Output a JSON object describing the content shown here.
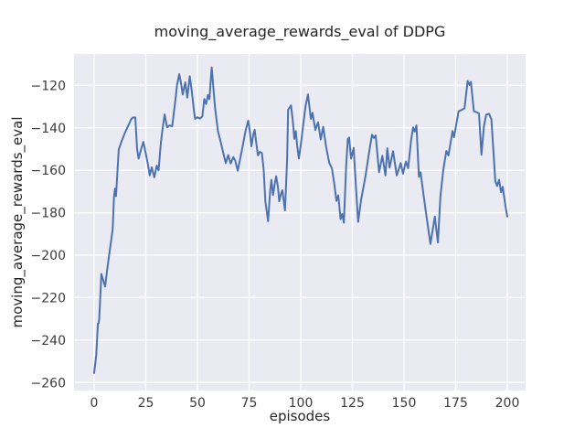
{
  "chart_data": {
    "type": "line",
    "title": "moving_average_rewards_eval of DDPG",
    "xlabel": "episodes",
    "ylabel": "moving_average_rewards_eval",
    "x_ticks": [
      0,
      25,
      50,
      75,
      100,
      125,
      150,
      175,
      200
    ],
    "y_ticks": [
      -120,
      -140,
      -160,
      -180,
      -200,
      -220,
      -240,
      -260
    ],
    "xlim": [
      -9.73,
      208.85
    ],
    "ylim": [
      -263.75,
      -105.2
    ],
    "grid": true,
    "legend": "none",
    "line_color": "#4C72B0",
    "plot_background": "#EAEAF2",
    "grid_color": "#FFFFFF",
    "figure_background": "#FFFFFF",
    "series": [
      {
        "name": "moving_average_rewards_eval",
        "points": [
          [
            0,
            -255.5
          ],
          [
            1,
            -247
          ],
          [
            1.8,
            -232.3
          ],
          [
            2.2,
            -231.9
          ],
          [
            2.5,
            -229.6
          ],
          [
            3.5,
            -208.8
          ],
          [
            4.3,
            -211.5
          ],
          [
            5.3,
            -214.8
          ],
          [
            6.3,
            -207
          ],
          [
            7.3,
            -199.5
          ],
          [
            8.2,
            -193.5
          ],
          [
            9,
            -187.6
          ],
          [
            9.6,
            -172.5
          ],
          [
            10.1,
            -168.6
          ],
          [
            10.6,
            -172.2
          ],
          [
            11.9,
            -150.2
          ],
          [
            13.4,
            -146
          ],
          [
            14.9,
            -142.3
          ],
          [
            16.5,
            -139
          ],
          [
            17.8,
            -136.2
          ],
          [
            18.6,
            -135.2
          ],
          [
            19.9,
            -135.1
          ],
          [
            20.8,
            -150
          ],
          [
            21.5,
            -154.5
          ],
          [
            22.6,
            -150.5
          ],
          [
            23.8,
            -146.6
          ],
          [
            25.2,
            -153
          ],
          [
            26.2,
            -158
          ],
          [
            26.9,
            -162.4
          ],
          [
            27.9,
            -158.6
          ],
          [
            29.1,
            -163.3
          ],
          [
            30.3,
            -157.8
          ],
          [
            31.2,
            -160
          ],
          [
            32.3,
            -147
          ],
          [
            33.2,
            -140
          ],
          [
            34.1,
            -133.7
          ],
          [
            35.3,
            -139.8
          ],
          [
            36.5,
            -138.9
          ],
          [
            37.8,
            -139.3
          ],
          [
            39.2,
            -128
          ],
          [
            40.1,
            -120
          ],
          [
            41.2,
            -114.7
          ],
          [
            42.3,
            -120.5
          ],
          [
            42.9,
            -124.3
          ],
          [
            44.1,
            -118.6
          ],
          [
            45.1,
            -125.8
          ],
          [
            46.3,
            -115.7
          ],
          [
            47.3,
            -123
          ],
          [
            48.3,
            -132
          ],
          [
            48.9,
            -135.8
          ],
          [
            50,
            -135
          ],
          [
            51.2,
            -135.6
          ],
          [
            52.4,
            -134.6
          ],
          [
            53.3,
            -126.4
          ],
          [
            54.2,
            -128.8
          ],
          [
            55.1,
            -124.5
          ],
          [
            55.8,
            -126.5
          ],
          [
            56.9,
            -111.5
          ],
          [
            57.8,
            -122
          ],
          [
            58.6,
            -131
          ],
          [
            59.9,
            -141.5
          ],
          [
            61.4,
            -147.3
          ],
          [
            62.8,
            -153
          ],
          [
            63.7,
            -156.6
          ],
          [
            64.9,
            -152.8
          ],
          [
            66.1,
            -156.8
          ],
          [
            67.4,
            -153.8
          ],
          [
            68.3,
            -155.5
          ],
          [
            69.5,
            -160.2
          ],
          [
            70.8,
            -154
          ],
          [
            72.2,
            -147
          ],
          [
            73.5,
            -140.5
          ],
          [
            74.6,
            -136.6
          ],
          [
            75.4,
            -142
          ],
          [
            76.1,
            -148.7
          ],
          [
            77,
            -143.5
          ],
          [
            77.7,
            -140.9
          ],
          [
            78.6,
            -148
          ],
          [
            79.3,
            -153
          ],
          [
            80.2,
            -151.3
          ],
          [
            81.2,
            -151.8
          ],
          [
            82.1,
            -160
          ],
          [
            82.9,
            -174.6
          ],
          [
            84.2,
            -184
          ],
          [
            85.2,
            -170
          ],
          [
            85.8,
            -164.5
          ],
          [
            86.6,
            -171.7
          ],
          [
            87.5,
            -166
          ],
          [
            88.1,
            -162.8
          ],
          [
            89,
            -168
          ],
          [
            89.6,
            -174.6
          ],
          [
            90.5,
            -171
          ],
          [
            91.1,
            -169.4
          ],
          [
            92.4,
            -178.9
          ],
          [
            93.4,
            -155
          ],
          [
            93.9,
            -131.5
          ],
          [
            95.3,
            -129.4
          ],
          [
            96.2,
            -137
          ],
          [
            96.9,
            -145.2
          ],
          [
            97.6,
            -141.5
          ],
          [
            98.3,
            -148.7
          ],
          [
            99.1,
            -154.5
          ],
          [
            100.2,
            -147
          ],
          [
            101.3,
            -138
          ],
          [
            102.3,
            -130
          ],
          [
            103.5,
            -124.3
          ],
          [
            104.9,
            -135.8
          ],
          [
            105.7,
            -132.9
          ],
          [
            107.1,
            -141
          ],
          [
            108.4,
            -137.4
          ],
          [
            109.7,
            -145.5
          ],
          [
            110.9,
            -139.5
          ],
          [
            112.3,
            -149
          ],
          [
            113.8,
            -156.5
          ],
          [
            115.1,
            -159
          ],
          [
            116.2,
            -166
          ],
          [
            117.3,
            -174.4
          ],
          [
            118.2,
            -171.8
          ],
          [
            119.3,
            -183
          ],
          [
            120.1,
            -180.6
          ],
          [
            120.9,
            -184.7
          ],
          [
            122,
            -158
          ],
          [
            122.8,
            -145.3
          ],
          [
            123.4,
            -144.6
          ],
          [
            124.4,
            -154.5
          ],
          [
            125.6,
            -149.4
          ],
          [
            126.7,
            -167
          ],
          [
            127.8,
            -184.3
          ],
          [
            129.2,
            -174
          ],
          [
            131.3,
            -163.2
          ],
          [
            133,
            -152
          ],
          [
            134.5,
            -143.2
          ],
          [
            135.4,
            -144.8
          ],
          [
            136.3,
            -143.6
          ],
          [
            137.9,
            -160.9
          ],
          [
            139.5,
            -153.2
          ],
          [
            141,
            -162.4
          ],
          [
            141.9,
            -149.6
          ],
          [
            143,
            -158.7
          ],
          [
            144.7,
            -151
          ],
          [
            146.5,
            -162.4
          ],
          [
            148.4,
            -156.6
          ],
          [
            149.5,
            -161.6
          ],
          [
            150.9,
            -155.9
          ],
          [
            152,
            -159
          ],
          [
            153.4,
            -146
          ],
          [
            154.4,
            -139.8
          ],
          [
            155.2,
            -141.8
          ],
          [
            156,
            -138.8
          ],
          [
            157.2,
            -163.1
          ],
          [
            158,
            -160.9
          ],
          [
            159.4,
            -171
          ],
          [
            160.9,
            -181.8
          ],
          [
            162.8,
            -194.7
          ],
          [
            164.9,
            -181.8
          ],
          [
            166.4,
            -194
          ],
          [
            167.6,
            -172.4
          ],
          [
            169,
            -160
          ],
          [
            170.5,
            -150.9
          ],
          [
            171.5,
            -153
          ],
          [
            173.5,
            -141.5
          ],
          [
            174.2,
            -144.4
          ],
          [
            176.4,
            -132.2
          ],
          [
            177.5,
            -131.8
          ],
          [
            179.3,
            -130.8
          ],
          [
            180.8,
            -117.9
          ],
          [
            181.7,
            -119.8
          ],
          [
            182.4,
            -118.3
          ],
          [
            183.8,
            -132.2
          ],
          [
            185,
            -132.6
          ],
          [
            186.3,
            -133.2
          ],
          [
            187.5,
            -152.7
          ],
          [
            188.7,
            -139
          ],
          [
            189.8,
            -133.8
          ],
          [
            191.2,
            -133.4
          ],
          [
            192.3,
            -136
          ],
          [
            193.4,
            -153
          ],
          [
            194.2,
            -165.2
          ],
          [
            195.1,
            -167.4
          ],
          [
            196,
            -164.5
          ],
          [
            197,
            -170.3
          ],
          [
            197.8,
            -167.8
          ],
          [
            199.2,
            -177.4
          ],
          [
            200,
            -181.8
          ]
        ]
      }
    ]
  }
}
